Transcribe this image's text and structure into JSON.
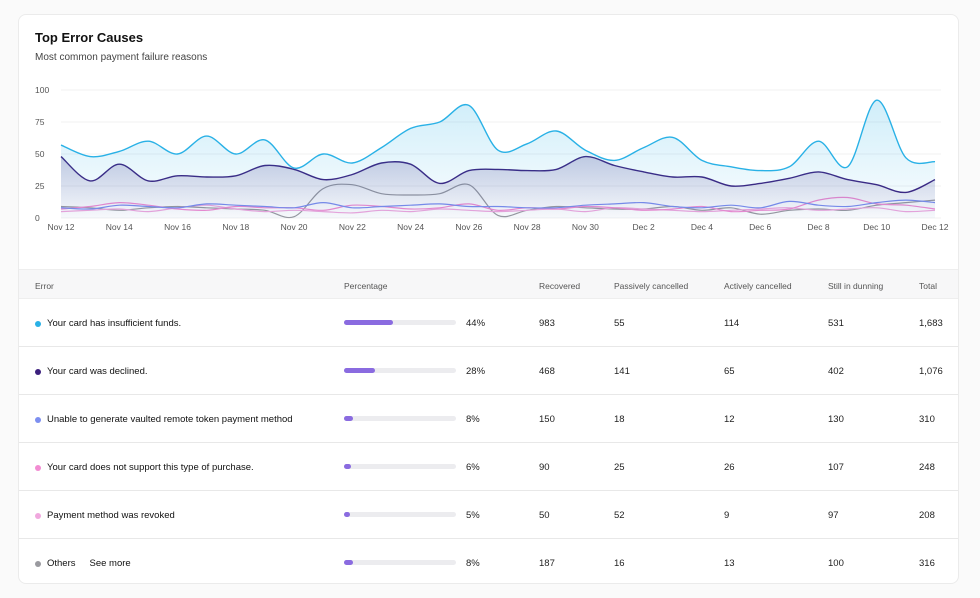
{
  "card": {
    "title": "Top Error Causes",
    "subtitle": "Most common payment failure reasons"
  },
  "chart_data": {
    "type": "area",
    "title": "Top Error Causes",
    "ylim": [
      0,
      100
    ],
    "yticks": [
      0,
      25,
      50,
      75,
      100
    ],
    "x": [
      "Nov 12",
      "Nov 13",
      "Nov 14",
      "Nov 15",
      "Nov 16",
      "Nov 17",
      "Nov 18",
      "Nov 19",
      "Nov 20",
      "Nov 21",
      "Nov 22",
      "Nov 23",
      "Nov 24",
      "Nov 25",
      "Nov 26",
      "Nov 27",
      "Nov 28",
      "Nov 29",
      "Nov 30",
      "Dec 1",
      "Dec 2",
      "Dec 3",
      "Dec 4",
      "Dec 5",
      "Dec 6",
      "Dec 7",
      "Dec 8",
      "Dec 9",
      "Dec 10",
      "Dec 11",
      "Dec 12"
    ],
    "xtick_labels": [
      "Nov 12",
      "Nov 14",
      "Nov 16",
      "Nov 18",
      "Nov 20",
      "Nov 22",
      "Nov 24",
      "Nov 26",
      "Nov 28",
      "Nov 30",
      "Dec 2",
      "Dec 4",
      "Dec 6",
      "Dec 8",
      "Dec 10",
      "Dec 12"
    ],
    "series": [
      {
        "name": "Your card has insufficient funds.",
        "color": "#29b1e6",
        "fill": true,
        "values": [
          57,
          48,
          52,
          60,
          50,
          64,
          50,
          61,
          39,
          50,
          43,
          55,
          70,
          75,
          88,
          53,
          58,
          68,
          53,
          45,
          55,
          63,
          45,
          40,
          37,
          40,
          60,
          40,
          92,
          47,
          44
        ]
      },
      {
        "name": "Your card was declined.",
        "color": "#3b1f7d",
        "fill": true,
        "values": [
          48,
          29,
          42,
          29,
          33,
          32,
          33,
          41,
          38,
          30,
          34,
          43,
          42,
          27,
          37,
          38,
          37,
          38,
          48,
          41,
          36,
          32,
          32,
          25,
          27,
          31,
          36,
          30,
          26,
          20,
          30
        ]
      },
      {
        "name": "Unable to generate vaulted remote token payment method",
        "color": "#7d8ff0",
        "fill": false,
        "values": [
          8,
          7,
          10,
          9,
          8,
          11,
          10,
          9,
          8,
          12,
          8,
          9,
          10,
          11,
          9,
          9,
          8,
          8,
          10,
          11,
          12,
          9,
          8,
          10,
          8,
          13,
          10,
          9,
          12,
          14,
          12
        ]
      },
      {
        "name": "Your card does not support this type of purchase.",
        "color": "#f28cd2",
        "fill": false,
        "values": [
          7,
          9,
          12,
          10,
          7,
          6,
          9,
          8,
          8,
          6,
          10,
          9,
          7,
          8,
          11,
          6,
          8,
          7,
          9,
          8,
          6,
          7,
          9,
          5,
          6,
          7,
          14,
          16,
          11,
          10,
          7
        ]
      },
      {
        "name": "Payment method was revoked",
        "color": "#f0a8de",
        "fill": false,
        "values": [
          5,
          6,
          7,
          5,
          8,
          10,
          7,
          5,
          6,
          5,
          4,
          6,
          5,
          7,
          6,
          5,
          6,
          7,
          5,
          8,
          7,
          6,
          5,
          6,
          7,
          8,
          6,
          7,
          8,
          5,
          6
        ]
      },
      {
        "name": "Others",
        "color": "#9a9a9f",
        "fill": false,
        "values": [
          9,
          8,
          6,
          8,
          9,
          8,
          7,
          6,
          1,
          23,
          26,
          19,
          18,
          19,
          26,
          2,
          6,
          9,
          8,
          7,
          7,
          9,
          6,
          8,
          3,
          6,
          7,
          6,
          10,
          12,
          14
        ]
      }
    ]
  },
  "table": {
    "headers": {
      "error": "Error",
      "percentage": "Percentage",
      "recovered": "Recovered",
      "passively": "Passively cancelled",
      "actively": "Actively cancelled",
      "dunning": "Still in dunning",
      "total": "Total"
    },
    "rows": [
      {
        "label": "Your card has insufficient funds.",
        "color": "#29b1e6",
        "pct": "44%",
        "pct_value": 44,
        "recovered": "983",
        "passively": "55",
        "actively": "114",
        "dunning": "531",
        "total": "1,683"
      },
      {
        "label": "Your card was declined.",
        "color": "#3b1f7d",
        "pct": "28%",
        "pct_value": 28,
        "recovered": "468",
        "passively": "141",
        "actively": "65",
        "dunning": "402",
        "total": "1,076"
      },
      {
        "label": "Unable to generate vaulted remote token payment method",
        "color": "#7d8ff0",
        "pct": "8%",
        "pct_value": 8,
        "recovered": "150",
        "passively": "18",
        "actively": "12",
        "dunning": "130",
        "total": "310"
      },
      {
        "label": "Your card does not support this type of purchase.",
        "color": "#f28cd2",
        "pct": "6%",
        "pct_value": 6,
        "recovered": "90",
        "passively": "25",
        "actively": "26",
        "dunning": "107",
        "total": "248"
      },
      {
        "label": "Payment method was revoked",
        "color": "#f0a8de",
        "pct": "5%",
        "pct_value": 5,
        "recovered": "50",
        "passively": "52",
        "actively": "9",
        "dunning": "97",
        "total": "208"
      },
      {
        "label": "Others",
        "color": "#9a9a9f",
        "pct": "8%",
        "pct_value": 8,
        "recovered": "187",
        "passively": "16",
        "actively": "13",
        "dunning": "100",
        "total": "316",
        "link": "See more"
      }
    ],
    "bar_color": "#8a6be0"
  }
}
